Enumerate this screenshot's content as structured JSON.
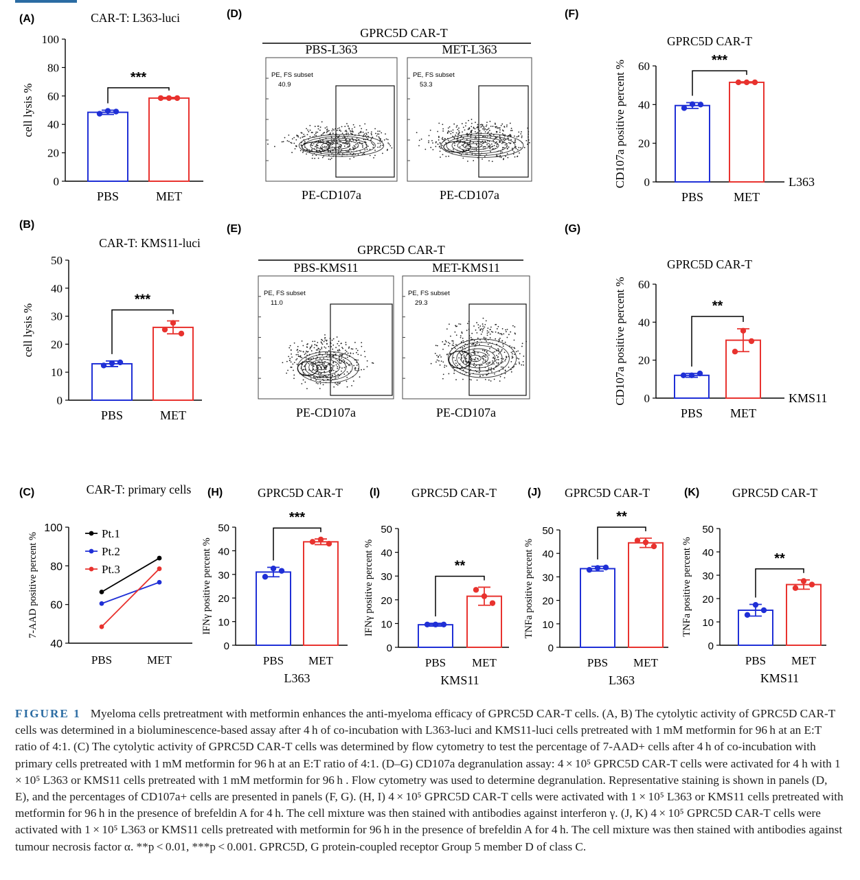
{
  "panels": {
    "A": {
      "label": "(A)",
      "title": "CAR-T:  L363-luci",
      "ylabel": "cell  lysis  %",
      "ylim": [
        0,
        100
      ],
      "yticks": [
        0,
        20,
        40,
        60,
        80,
        100
      ],
      "categories": [
        "PBS",
        "MET"
      ],
      "means": [
        48.5,
        58.5
      ],
      "sd": [
        1.5,
        0.5
      ],
      "points": [
        [
          47.5,
          49.5,
          49
        ],
        [
          58.5,
          58.5,
          58.5
        ]
      ],
      "sig": "***",
      "sublabel": ""
    },
    "B": {
      "label": "(B)",
      "title": "CAR-T:  KMS11-luci",
      "ylabel": "cell  lysis  %",
      "ylim": [
        0,
        50
      ],
      "yticks": [
        0,
        10,
        20,
        30,
        40,
        50
      ],
      "categories": [
        "PBS",
        "MET"
      ],
      "means": [
        13,
        26
      ],
      "sd": [
        1,
        2.3
      ],
      "points": [
        [
          12.4,
          13.2,
          13.5
        ],
        [
          25.2,
          27.6,
          23.8
        ]
      ],
      "sig": "***",
      "sublabel": ""
    },
    "C": {
      "label": "(C)",
      "title": "CAR-T: primary cells",
      "ylabel": "7-AAD positive percent %",
      "ylim": [
        40,
        100
      ],
      "yticks": [
        40,
        60,
        80,
        100
      ],
      "categories": [
        "PBS",
        "MET"
      ],
      "series": [
        {
          "name": "Pt.1",
          "color": "#000000",
          "values": [
            66.5,
            84
          ]
        },
        {
          "name": "Pt.2",
          "color": "#1f2fd6",
          "values": [
            60.5,
            71.5
          ]
        },
        {
          "name": "Pt.3",
          "color": "#e8322e",
          "values": [
            48.5,
            78.5
          ]
        }
      ]
    },
    "D": {
      "label": "(D)",
      "header": "GPRC5D CAR-T",
      "plots": [
        {
          "name": "PBS-L363",
          "gate": "PE, FS subset",
          "value": "40.9",
          "xlabel": "PE-CD107a"
        },
        {
          "name": "MET-L363",
          "gate": "PE, FS subset",
          "value": "53.3",
          "xlabel": "PE-CD107a"
        }
      ]
    },
    "E": {
      "label": "(E)",
      "header": "GPRC5D CAR-T",
      "plots": [
        {
          "name": "PBS-KMS11",
          "gate": "PE, FS subset",
          "value": "11.0",
          "xlabel": "PE-CD107a"
        },
        {
          "name": "MET-KMS11",
          "gate": "PE, FS subset",
          "value": "29.3",
          "xlabel": "PE-CD107a"
        }
      ]
    },
    "F": {
      "label": "(F)",
      "title": "GPRC5D CAR-T",
      "ylabel": "CD107a  positive  percent %",
      "ylim": [
        0,
        60
      ],
      "yticks": [
        0,
        20,
        40,
        60
      ],
      "categories": [
        "PBS",
        "MET"
      ],
      "means": [
        39.5,
        51.5
      ],
      "sd": [
        1.5,
        0.3
      ],
      "points": [
        [
          38.2,
          40.2,
          40
        ],
        [
          51.5,
          51.5,
          51.5
        ]
      ],
      "sig": "***",
      "sublabel": "L363"
    },
    "G": {
      "label": "(G)",
      "title": "GPRC5D CAR-T",
      "ylabel": "CD107a  positive  percent %",
      "ylim": [
        0,
        60
      ],
      "yticks": [
        0,
        20,
        40,
        60
      ],
      "categories": [
        "PBS",
        "MET"
      ],
      "means": [
        12,
        30.5
      ],
      "sd": [
        1,
        6
      ],
      "points": [
        [
          12,
          12,
          13
        ],
        [
          24.5,
          35.5,
          30
        ]
      ],
      "sig": "**",
      "sublabel": "KMS11"
    },
    "H": {
      "label": "(H)",
      "title": "GPRC5D CAR-T",
      "ylabel": "IFNγ  positive  percent %",
      "ylim": [
        0,
        50
      ],
      "yticks": [
        0,
        10,
        20,
        30,
        40,
        50
      ],
      "categories": [
        "PBS",
        "MET"
      ],
      "means": [
        31,
        43.8
      ],
      "sd": [
        2,
        1.2
      ],
      "points": [
        [
          29,
          32.5,
          31.5
        ],
        [
          43.8,
          44.8,
          43
        ]
      ],
      "sig": "***",
      "sublabel": "L363"
    },
    "I": {
      "label": "(I)",
      "title": "GPRC5D CAR-T",
      "ylabel": "IFNγ  positive  percent %",
      "ylim": [
        0,
        50
      ],
      "yticks": [
        0,
        10,
        20,
        30,
        40,
        50
      ],
      "categories": [
        "PBS",
        "MET"
      ],
      "means": [
        9.5,
        21.5
      ],
      "sd": [
        0.6,
        3.8
      ],
      "points": [
        [
          9.6,
          9.6,
          9.6
        ],
        [
          24.2,
          21.5,
          18.6
        ]
      ],
      "sig": "**",
      "sublabel": "KMS11"
    },
    "J": {
      "label": "(J)",
      "title": "GPRC5D CAR-T",
      "ylabel": "TNFa  positive  percent %",
      "ylim": [
        0,
        50
      ],
      "yticks": [
        0,
        10,
        20,
        30,
        40,
        50
      ],
      "categories": [
        "PBS",
        "MET"
      ],
      "means": [
        33.5,
        44.5
      ],
      "sd": [
        1,
        2
      ],
      "points": [
        [
          33,
          33.8,
          34
        ],
        [
          45.5,
          44.7,
          43
        ]
      ],
      "sig": "**",
      "sublabel": "L363"
    },
    "K": {
      "label": "(K)",
      "title": "GPRC5D CAR-T",
      "ylabel": "TNFa  positive  percent %",
      "ylim": [
        0,
        50
      ],
      "yticks": [
        0,
        10,
        20,
        30,
        40,
        50
      ],
      "categories": [
        "PBS",
        "MET"
      ],
      "means": [
        15,
        26
      ],
      "sd": [
        2.5,
        2
      ],
      "points": [
        [
          13,
          17.3,
          15
        ],
        [
          24.5,
          27.5,
          26
        ]
      ],
      "sig": "**",
      "sublabel": "KMS11"
    }
  },
  "caption": {
    "label": "FIGURE 1",
    "text": "Myeloma cells pretreatment with metformin enhances the anti-myeloma efficacy of GPRC5D CAR-T cells. (A, B) The cytolytic activity of GPRC5D CAR-T cells was determined in a bioluminescence-based assay after 4 h of co-incubation with L363-luci and KMS11-luci cells pretreated with 1 mM metformin for 96 h at an E:T ratio of 4:1. (C) The cytolytic activity of GPRC5D CAR-T cells was determined by flow cytometry to test the percentage of 7-AAD+ cells after 4 h of co-incubation with primary cells pretreated with 1 mM metformin for 96 h at an E:T ratio of 4:1. (D–G) CD107a degranulation assay: 4 × 10⁵ GPRC5D CAR-T cells were activated for 4 h with 1 × 10⁵ L363 or KMS11 cells pretreated with 1 mM metformin for 96 h . Flow cytometry was used to determine degranulation. Representative staining is shown in panels (D, E), and the percentages of CD107a+ cells are presented in panels (F, G). (H, I) 4 × 10⁵ GPRC5D CAR-T cells were activated with 1 × 10⁵ L363 or KMS11 cells pretreated with metformin for 96 h in the presence of brefeldin A for 4 h. The cell mixture was then stained with antibodies against interferon γ. (J, K) 4 × 10⁵ GPRC5D CAR-T cells were activated with 1 × 10⁵ L363 or KMS11 cells pretreated with metformin for 96 h in the presence of brefeldin A for 4 h. The cell mixture was then stained with antibodies against tumour necrosis factor α. **p < 0.01, ***p < 0.001. GPRC5D, G protein-coupled receptor Group 5 member D of class C."
  },
  "colors": {
    "pbs": "#1f2fd6",
    "met": "#e8322e",
    "axis": "#000000"
  }
}
